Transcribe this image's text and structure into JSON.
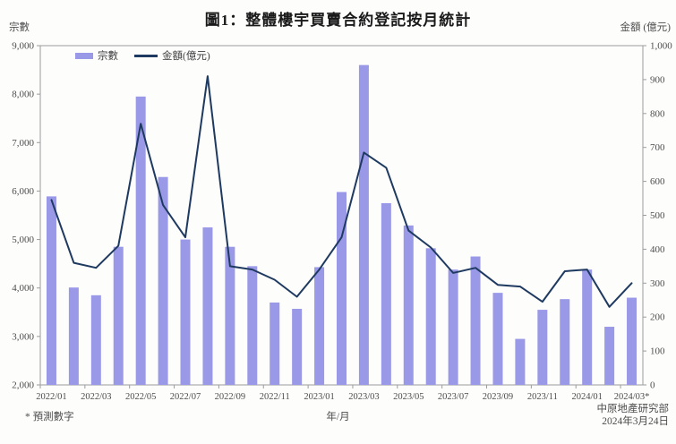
{
  "header": {
    "title": "圖1：整體樓宇買賣合約登記按月統計",
    "left_axis_unit": "宗數",
    "right_axis_unit": "金額 (億元)"
  },
  "legend": {
    "bars_label": "宗數",
    "line_label": "金額(億元)"
  },
  "footer": {
    "footnote": "* 預測數字",
    "x_axis_title": "年/月",
    "source": "中原地產研究部",
    "date": "2024年3月24日"
  },
  "colors": {
    "bar": "#9a99e8",
    "line": "#1f3a60",
    "axis": "#9c9c9c",
    "tick_text": "#4d4d4d"
  },
  "chart_data": {
    "type": "combo bar+line",
    "title": "圖1：整體樓宇買賣合約登記按月統計",
    "categories": [
      "2022/01",
      "2022/02",
      "2022/03",
      "2022/04",
      "2022/05",
      "2022/06",
      "2022/07",
      "2022/08",
      "2022/09",
      "2022/10",
      "2022/11",
      "2022/12",
      "2023/01",
      "2023/02",
      "2023/03",
      "2023/04",
      "2023/05",
      "2023/06",
      "2023/07",
      "2023/08",
      "2023/09",
      "2023/10",
      "2023/11",
      "2023/12",
      "2024/01",
      "2024/02",
      "2024/03*"
    ],
    "series": [
      {
        "name": "宗數",
        "type": "bar",
        "axis": "left",
        "values": [
          5890,
          4010,
          3850,
          4850,
          7950,
          6290,
          5000,
          5250,
          4850,
          4450,
          3700,
          3570,
          4430,
          5980,
          8600,
          5750,
          5290,
          4820,
          4380,
          4650,
          3900,
          2950,
          3550,
          3770,
          4380,
          3200,
          3800
        ]
      },
      {
        "name": "金額(億元)",
        "type": "line",
        "axis": "right",
        "values": [
          545,
          360,
          345,
          410,
          770,
          530,
          435,
          910,
          350,
          340,
          310,
          260,
          340,
          435,
          685,
          640,
          455,
          405,
          330,
          345,
          295,
          290,
          245,
          335,
          340,
          230,
          300
        ]
      }
    ],
    "left_axis": {
      "label": "宗數",
      "min": 2000,
      "max": 9000,
      "step": 1000
    },
    "right_axis": {
      "label": "金額 (億元)",
      "min": 0,
      "max": 1000,
      "step": 100
    },
    "x_axis": {
      "title": "年/月",
      "labels_every_n": 2
    },
    "legend_position": "top-left inside plot",
    "grid": false,
    "footnote": "* 預測數字 (2024/03 is a forecast)"
  }
}
